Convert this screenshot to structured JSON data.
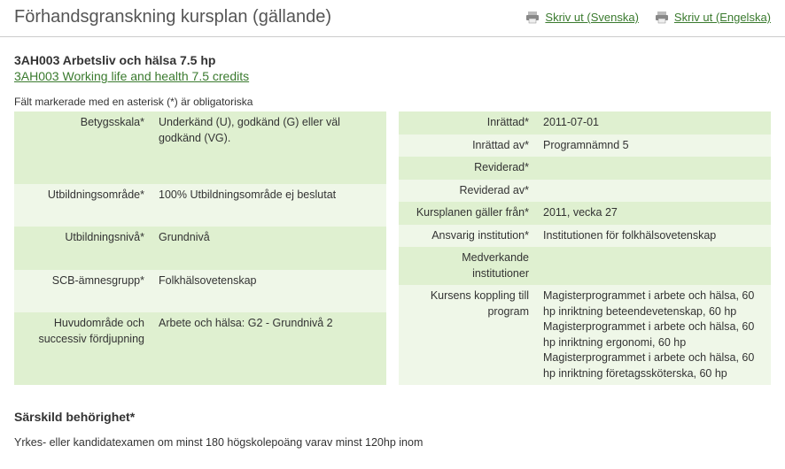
{
  "page_title": "Förhandsgranskning kursplan (gällande)",
  "print_links": {
    "sv": "Skriv ut (Svenska)",
    "en": "Skriv ut (Engelska)"
  },
  "course": {
    "title_sv": "3AH003 Arbetsliv och hälsa 7.5 hp",
    "title_en": "3AH003 Working life and health 7.5 credits"
  },
  "required_note": "Fält markerade med en asterisk (*) är obligatoriska",
  "left_rows": [
    {
      "label": "Betygsskala*",
      "value": "Underkänd (U), godkänd (G) eller väl godkänd (VG)."
    },
    {
      "label": "Utbildningsområde*",
      "value": "100% Utbildningsområde ej beslutat"
    },
    {
      "label": "Utbildningsnivå*",
      "value": "Grundnivå"
    },
    {
      "label": "SCB-ämnesgrupp*",
      "value": "Folkhälsovetenskap"
    },
    {
      "label": "Huvudområde och successiv fördjupning",
      "value": "Arbete och hälsa: G2 - Grundnivå 2"
    }
  ],
  "right_rows": [
    {
      "label": "Inrättad*",
      "value": "2011-07-01"
    },
    {
      "label": "Inrättad av*",
      "value": "Programnämnd 5"
    },
    {
      "label": "Reviderad*",
      "value": ""
    },
    {
      "label": "Reviderad av*",
      "value": ""
    },
    {
      "label": "Kursplanen gäller från*",
      "value": "2011, vecka 27"
    },
    {
      "label": "Ansvarig institution*",
      "value": "Institutionen för folkhälsovetenskap"
    },
    {
      "label": "Medverkande institutioner",
      "value": ""
    },
    {
      "label": "Kursens koppling till program",
      "value": "Magisterprogrammet i arbete och hälsa, 60 hp inriktning beteendevetenskap, 60 hp\nMagisterprogrammet i arbete och hälsa, 60 hp inriktning ergonomi, 60 hp\nMagisterprogrammet i arbete och hälsa, 60 hp inriktning företagssköterska, 60 hp"
    }
  ],
  "eligibility": {
    "heading": "Särskild behörighet*",
    "body": "Yrkes- eller kandidatexamen om minst 180 högskolepoäng varav minst 120hp inom"
  }
}
